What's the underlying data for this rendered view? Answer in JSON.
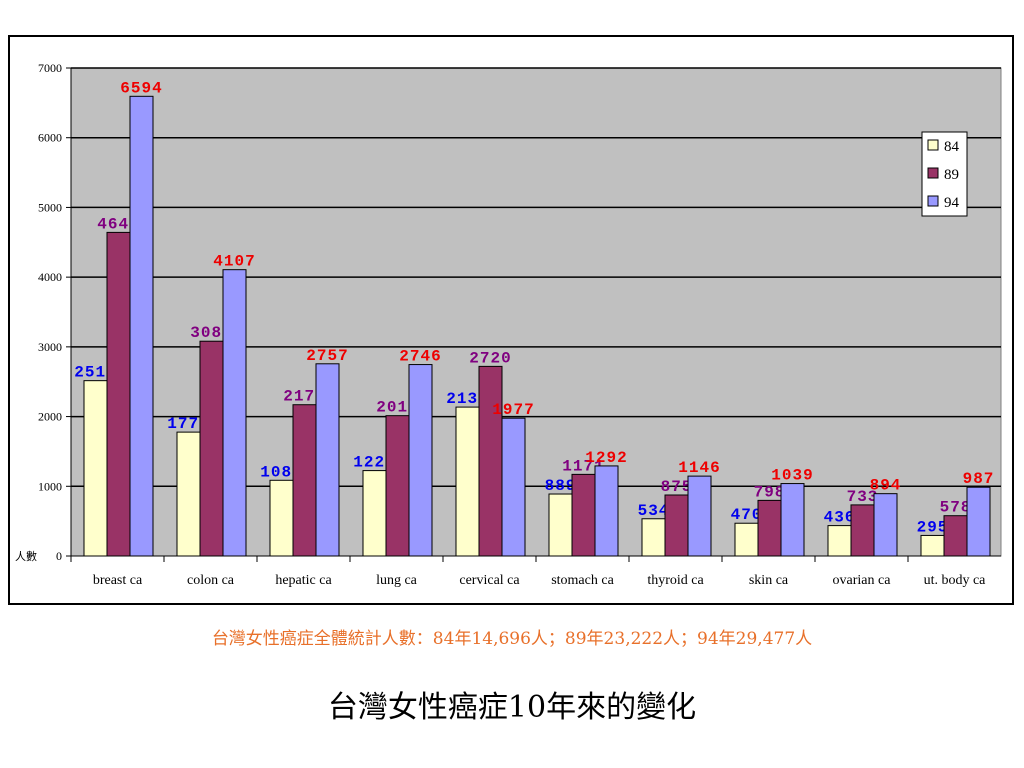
{
  "chart_data": {
    "type": "bar",
    "categories": [
      "breast ca",
      "colon ca",
      "hepatic ca",
      "lung ca",
      "cervical ca",
      "stomach ca",
      "thyroid ca",
      "skin ca",
      "ovarian ca",
      "ut. body ca"
    ],
    "series": [
      {
        "name": "84",
        "color": "#ffffcc",
        "values": [
          2515,
          1777,
          1086,
          1225,
          2136,
          889,
          534,
          470,
          436,
          295
        ],
        "label_colors": [
          "#0000ee",
          "#0000ee",
          "#0000ee",
          "#0000ee",
          "#0000ee",
          "#0000ee",
          "#0000ee",
          "#0000ee",
          "#0000ee",
          "#0000ee"
        ]
      },
      {
        "name": "89",
        "color": "#993366",
        "values": [
          4642,
          3081,
          2170,
          2013,
          2720,
          1171,
          875,
          798,
          733,
          578
        ],
        "label_colors": [
          "#800080",
          "#800080",
          "#800080",
          "#800080",
          "#800080",
          "#800080",
          "#800080",
          "#800080",
          "#800080",
          "#800080"
        ]
      },
      {
        "name": "94",
        "color": "#9999ff",
        "values": [
          6594,
          4107,
          2757,
          2746,
          1977,
          1292,
          1146,
          1039,
          894,
          987
        ],
        "label_colors": [
          "#ee0000",
          "#ee0000",
          "#ee0000",
          "#ee0000",
          "#ee0000",
          "#ee0000",
          "#ee0000",
          "#ee0000",
          "#ee0000",
          "#ee0000"
        ]
      }
    ],
    "yticks": [
      0,
      1000,
      2000,
      3000,
      4000,
      5000,
      6000,
      7000
    ],
    "ylim": [
      0,
      7000
    ],
    "ylabel": "人數",
    "grid": true,
    "plot_background": "#c0c0c0",
    "legend_position": "right"
  },
  "summary_text": "台灣女性癌症全體統計人數：84年14,696人；89年23,222人；94年29,477人",
  "title": "台灣女性癌症10年來的變化"
}
